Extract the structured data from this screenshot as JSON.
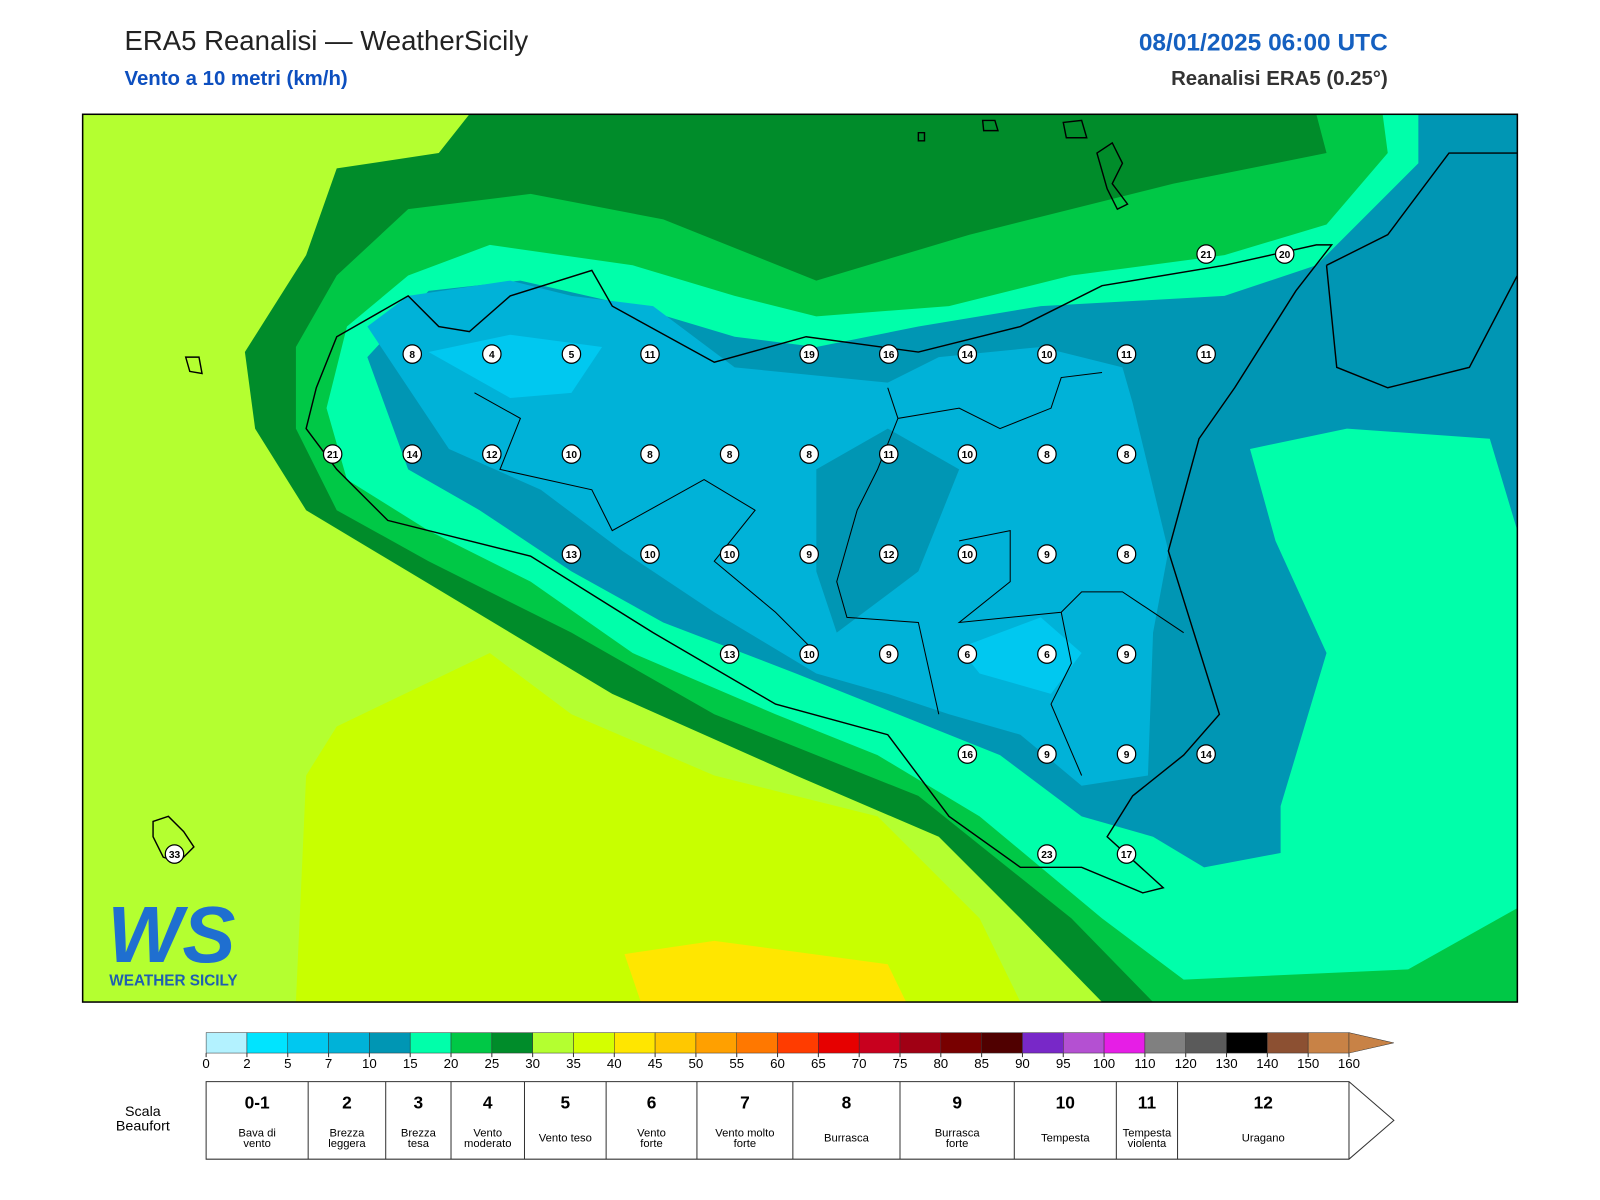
{
  "header": {
    "title": "ERA5 Reanalisi — WeatherSicily",
    "subtitle": "Vento a 10 metri (km/h)",
    "datetime": "08/01/2025 06:00 UTC",
    "source": "Reanalisi ERA5 (0.25°)"
  },
  "map": {
    "stations": [
      21,
      20,
      8,
      4,
      5,
      11,
      19,
      16,
      14,
      10,
      11,
      11,
      21,
      14,
      12,
      10,
      8,
      8,
      8,
      11,
      10,
      8,
      8,
      13,
      10,
      10,
      9,
      12,
      10,
      9,
      8,
      13,
      10,
      9,
      6,
      6,
      9,
      16,
      9,
      9,
      14,
      33,
      23,
      17
    ]
  },
  "logo": {
    "mark": "WS",
    "text": "WEATHER SICILY"
  },
  "colorbar": {
    "ticks": [
      0,
      2,
      5,
      7,
      10,
      15,
      20,
      25,
      30,
      35,
      40,
      45,
      50,
      55,
      60,
      65,
      70,
      75,
      80,
      85,
      90,
      95,
      100,
      110,
      120,
      130,
      140,
      150,
      160
    ],
    "colors": [
      "#b3f2ff",
      "#00e4ff",
      "#00c8f0",
      "#00b2d8",
      "#0096b4",
      "#00ffaa",
      "#00c846",
      "#008c2a",
      "#b4ff30",
      "#d4ff00",
      "#ffe600",
      "#ffc800",
      "#ffa000",
      "#ff7800",
      "#ff3c00",
      "#e60000",
      "#c8001e",
      "#a00014",
      "#780000",
      "#500000",
      "#7828c8",
      "#b450d2",
      "#e61ee6",
      "#808080",
      "#5a5a5a",
      "#000000",
      "#8c5032",
      "#c88246"
    ]
  },
  "beaufort": {
    "label": [
      "Scala",
      "Beaufort"
    ],
    "levels": [
      {
        "force": "0-1",
        "description": [
          "Bava di",
          "vento"
        ]
      },
      {
        "force": 2,
        "description": [
          "Brezza",
          "leggera"
        ]
      },
      {
        "force": 3,
        "description": [
          "Brezza",
          "tesa"
        ]
      },
      {
        "force": 4,
        "description": [
          "Vento",
          "moderato"
        ]
      },
      {
        "force": 5,
        "description": [
          "Vento teso"
        ]
      },
      {
        "force": 6,
        "description": [
          "Vento",
          "forte"
        ]
      },
      {
        "force": 7,
        "description": [
          "Vento molto",
          "forte"
        ]
      },
      {
        "force": 8,
        "description": [
          "Burrasca"
        ]
      },
      {
        "force": 9,
        "description": [
          "Burrasca",
          "forte"
        ]
      },
      {
        "force": 10,
        "description": [
          "Tempesta"
        ]
      },
      {
        "force": 11,
        "description": [
          "Tempesta",
          "violenta"
        ]
      },
      {
        "force": 12,
        "description": [
          "Uragano"
        ]
      }
    ]
  }
}
